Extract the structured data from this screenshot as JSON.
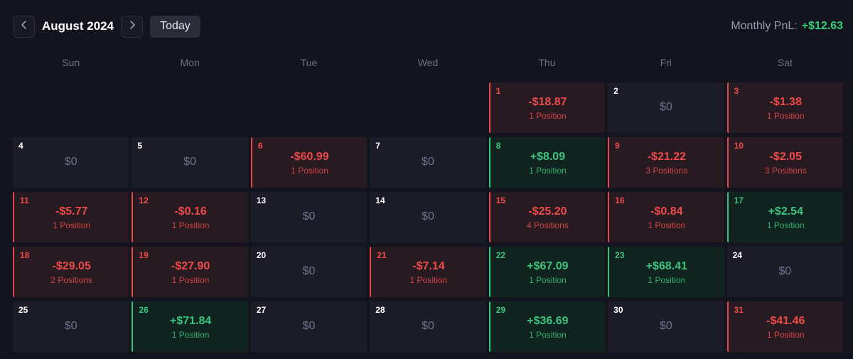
{
  "header": {
    "prev_icon": "chevron-left-icon",
    "next_icon": "chevron-right-icon",
    "month_label": "August 2024",
    "today_label": "Today",
    "pnl_label": "Monthly PnL",
    "pnl_sep": ":",
    "pnl_value": "+$12.63"
  },
  "colors": {
    "background": "#14141f",
    "gain": "#33c47a",
    "loss": "#e5484d",
    "neutral_cell": "#1c1c29"
  },
  "weekdays": [
    "Sun",
    "Mon",
    "Tue",
    "Wed",
    "Thu",
    "Fri",
    "Sat"
  ],
  "days": [
    {
      "day": "",
      "amount": "",
      "positions": "",
      "status": "empty"
    },
    {
      "day": "",
      "amount": "",
      "positions": "",
      "status": "empty"
    },
    {
      "day": "",
      "amount": "",
      "positions": "",
      "status": "empty"
    },
    {
      "day": "",
      "amount": "",
      "positions": "",
      "status": "empty"
    },
    {
      "day": "1",
      "amount": "-$18.87",
      "positions": "1 Position",
      "status": "loss"
    },
    {
      "day": "2",
      "amount": "$0",
      "positions": "",
      "status": "neutral"
    },
    {
      "day": "3",
      "amount": "-$1.38",
      "positions": "1 Position",
      "status": "loss"
    },
    {
      "day": "4",
      "amount": "$0",
      "positions": "",
      "status": "neutral"
    },
    {
      "day": "5",
      "amount": "$0",
      "positions": "",
      "status": "neutral"
    },
    {
      "day": "6",
      "amount": "-$60.99",
      "positions": "1 Position",
      "status": "loss"
    },
    {
      "day": "7",
      "amount": "$0",
      "positions": "",
      "status": "neutral"
    },
    {
      "day": "8",
      "amount": "+$8.09",
      "positions": "1 Position",
      "status": "gain"
    },
    {
      "day": "9",
      "amount": "-$21.22",
      "positions": "3 Positions",
      "status": "loss"
    },
    {
      "day": "10",
      "amount": "-$2.05",
      "positions": "3 Positions",
      "status": "loss"
    },
    {
      "day": "11",
      "amount": "-$5.77",
      "positions": "1 Position",
      "status": "loss"
    },
    {
      "day": "12",
      "amount": "-$0.16",
      "positions": "1 Position",
      "status": "loss"
    },
    {
      "day": "13",
      "amount": "$0",
      "positions": "",
      "status": "neutral"
    },
    {
      "day": "14",
      "amount": "$0",
      "positions": "",
      "status": "neutral"
    },
    {
      "day": "15",
      "amount": "-$25.20",
      "positions": "4 Positions",
      "status": "loss"
    },
    {
      "day": "16",
      "amount": "-$0.84",
      "positions": "1 Position",
      "status": "loss"
    },
    {
      "day": "17",
      "amount": "+$2.54",
      "positions": "1 Position",
      "status": "gain"
    },
    {
      "day": "18",
      "amount": "-$29.05",
      "positions": "2 Positions",
      "status": "loss"
    },
    {
      "day": "19",
      "amount": "-$27.90",
      "positions": "1 Position",
      "status": "loss"
    },
    {
      "day": "20",
      "amount": "$0",
      "positions": "",
      "status": "neutral"
    },
    {
      "day": "21",
      "amount": "-$7.14",
      "positions": "1 Position",
      "status": "loss"
    },
    {
      "day": "22",
      "amount": "+$67.09",
      "positions": "1 Position",
      "status": "gain"
    },
    {
      "day": "23",
      "amount": "+$68.41",
      "positions": "1 Position",
      "status": "gain"
    },
    {
      "day": "24",
      "amount": "$0",
      "positions": "",
      "status": "neutral"
    },
    {
      "day": "25",
      "amount": "$0",
      "positions": "",
      "status": "neutral"
    },
    {
      "day": "26",
      "amount": "+$71.84",
      "positions": "1 Position",
      "status": "gain"
    },
    {
      "day": "27",
      "amount": "$0",
      "positions": "",
      "status": "neutral"
    },
    {
      "day": "28",
      "amount": "$0",
      "positions": "",
      "status": "neutral"
    },
    {
      "day": "29",
      "amount": "+$36.69",
      "positions": "1 Position",
      "status": "gain"
    },
    {
      "day": "30",
      "amount": "$0",
      "positions": "",
      "status": "neutral"
    },
    {
      "day": "31",
      "amount": "-$41.46",
      "positions": "1 Position",
      "status": "loss"
    }
  ]
}
